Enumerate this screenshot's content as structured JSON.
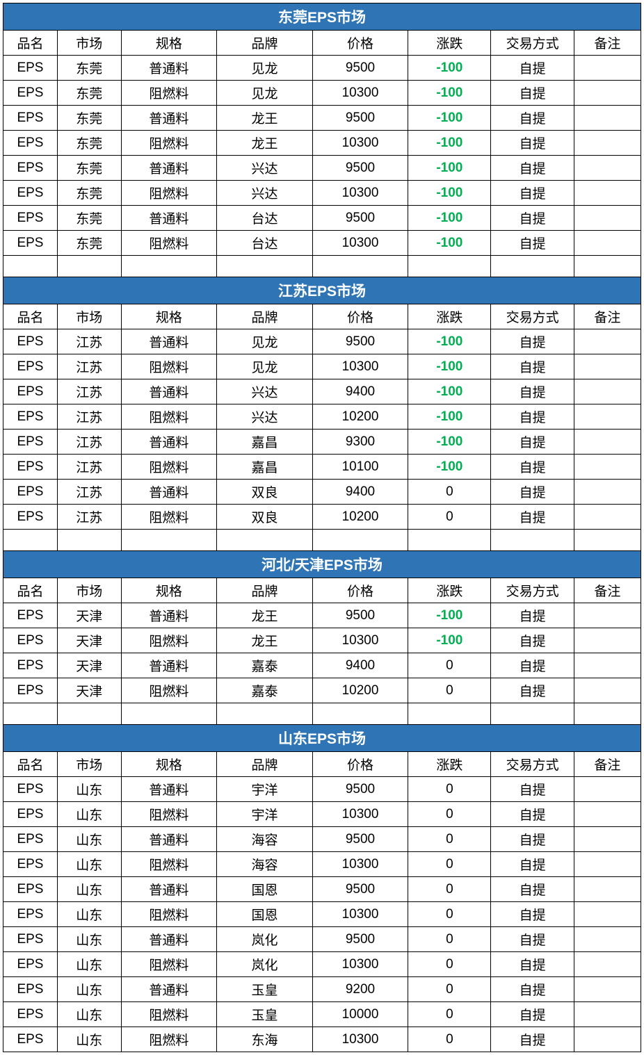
{
  "colors": {
    "header_bg": "#2f75b5",
    "header_text": "#ffffff",
    "border": "#000000",
    "negative_change": "#00b050",
    "background": "#ffffff"
  },
  "typography": {
    "font_family": "Microsoft YaHei, Arial, sans-serif",
    "header_fontsize": 21,
    "cell_fontsize": 19
  },
  "columns": [
    "品名",
    "市场",
    "规格",
    "品牌",
    "价格",
    "涨跌",
    "交易方式",
    "备注"
  ],
  "column_widths_pct": [
    8.5,
    10,
    15,
    15,
    15,
    13,
    13,
    10.5
  ],
  "sections": [
    {
      "title": "东莞EPS市场",
      "rows": [
        [
          "EPS",
          "东莞",
          "普通料",
          "见龙",
          "9500",
          "-100",
          "自提",
          ""
        ],
        [
          "EPS",
          "东莞",
          "阻燃料",
          "见龙",
          "10300",
          "-100",
          "自提",
          ""
        ],
        [
          "EPS",
          "东莞",
          "普通料",
          "龙王",
          "9500",
          "-100",
          "自提",
          ""
        ],
        [
          "EPS",
          "东莞",
          "阻燃料",
          "龙王",
          "10300",
          "-100",
          "自提",
          ""
        ],
        [
          "EPS",
          "东莞",
          "普通料",
          "兴达",
          "9500",
          "-100",
          "自提",
          ""
        ],
        [
          "EPS",
          "东莞",
          "阻燃料",
          "兴达",
          "10300",
          "-100",
          "自提",
          ""
        ],
        [
          "EPS",
          "东莞",
          "普通料",
          "台达",
          "9500",
          "-100",
          "自提",
          ""
        ],
        [
          "EPS",
          "东莞",
          "阻燃料",
          "台达",
          "10300",
          "-100",
          "自提",
          ""
        ]
      ],
      "blank_after": true
    },
    {
      "title": "江苏EPS市场",
      "rows": [
        [
          "EPS",
          "江苏",
          "普通料",
          "见龙",
          "9500",
          "-100",
          "自提",
          ""
        ],
        [
          "EPS",
          "江苏",
          "阻燃料",
          "见龙",
          "10300",
          "-100",
          "自提",
          ""
        ],
        [
          "EPS",
          "江苏",
          "普通料",
          "兴达",
          "9400",
          "-100",
          "自提",
          ""
        ],
        [
          "EPS",
          "江苏",
          "阻燃料",
          "兴达",
          "10200",
          "-100",
          "自提",
          ""
        ],
        [
          "EPS",
          "江苏",
          "普通料",
          "嘉昌",
          "9300",
          "-100",
          "自提",
          ""
        ],
        [
          "EPS",
          "江苏",
          "阻燃料",
          "嘉昌",
          "10100",
          "-100",
          "自提",
          ""
        ],
        [
          "EPS",
          "江苏",
          "普通料",
          "双良",
          "9400",
          "0",
          "自提",
          ""
        ],
        [
          "EPS",
          "江苏",
          "阻燃料",
          "双良",
          "10200",
          "0",
          "自提",
          ""
        ]
      ],
      "blank_after": true
    },
    {
      "title": "河北/天津EPS市场",
      "rows": [
        [
          "EPS",
          "天津",
          "普通料",
          "龙王",
          "9500",
          "-100",
          "自提",
          ""
        ],
        [
          "EPS",
          "天津",
          "阻燃料",
          "龙王",
          "10300",
          "-100",
          "自提",
          ""
        ],
        [
          "EPS",
          "天津",
          "普通料",
          "嘉泰",
          "9400",
          "0",
          "自提",
          ""
        ],
        [
          "EPS",
          "天津",
          "阻燃料",
          "嘉泰",
          "10200",
          "0",
          "自提",
          ""
        ]
      ],
      "blank_after": true
    },
    {
      "title": "山东EPS市场",
      "rows": [
        [
          "EPS",
          "山东",
          "普通料",
          "宇洋",
          "9500",
          "0",
          "自提",
          ""
        ],
        [
          "EPS",
          "山东",
          "阻燃料",
          "宇洋",
          "10300",
          "0",
          "自提",
          ""
        ],
        [
          "EPS",
          "山东",
          "普通料",
          "海容",
          "9500",
          "0",
          "自提",
          ""
        ],
        [
          "EPS",
          "山东",
          "阻燃料",
          "海容",
          "10300",
          "0",
          "自提",
          ""
        ],
        [
          "EPS",
          "山东",
          "普通料",
          "国恩",
          "9500",
          "0",
          "自提",
          ""
        ],
        [
          "EPS",
          "山东",
          "阻燃料",
          "国恩",
          "10300",
          "0",
          "自提",
          ""
        ],
        [
          "EPS",
          "山东",
          "普通料",
          "岚化",
          "9500",
          "0",
          "自提",
          ""
        ],
        [
          "EPS",
          "山东",
          "阻燃料",
          "岚化",
          "10300",
          "0",
          "自提",
          ""
        ],
        [
          "EPS",
          "山东",
          "普通料",
          "玉皇",
          "9200",
          "0",
          "自提",
          ""
        ],
        [
          "EPS",
          "山东",
          "阻燃料",
          "玉皇",
          "10000",
          "0",
          "自提",
          ""
        ],
        [
          "EPS",
          "山东",
          "阻燃料",
          "东海",
          "10300",
          "0",
          "自提",
          ""
        ]
      ],
      "blank_after": false
    }
  ]
}
